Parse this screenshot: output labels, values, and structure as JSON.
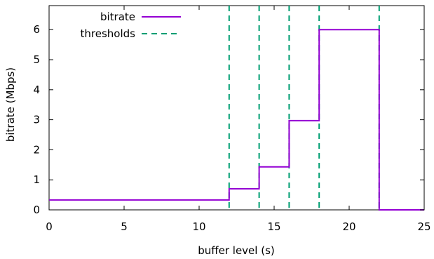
{
  "chart_data": {
    "type": "line",
    "xlabel": "buffer level (s)",
    "ylabel": "bitrate (Mbps)",
    "xlim": [
      0,
      25
    ],
    "ylim": [
      0,
      6.8
    ],
    "xticks": [
      "0",
      "5",
      "10",
      "15",
      "20",
      "25"
    ],
    "yticks": [
      "0",
      "1",
      "2",
      "3",
      "4",
      "5",
      "6"
    ],
    "legend_position": "top-left",
    "grid": false,
    "series": [
      {
        "name": "bitrate",
        "style": "solid-step",
        "color": "#9400d3",
        "x": [
          0,
          12,
          12,
          14,
          14,
          16,
          16,
          18,
          18,
          22,
          22,
          25
        ],
        "y": [
          0.33,
          0.33,
          0.7,
          0.7,
          1.43,
          1.43,
          2.97,
          2.97,
          6.0,
          6.0,
          0.0,
          0.0
        ]
      },
      {
        "name": "thresholds",
        "style": "dashed-vertical",
        "color": "#009e73",
        "x": [
          12,
          14,
          16,
          18,
          22
        ]
      }
    ]
  }
}
